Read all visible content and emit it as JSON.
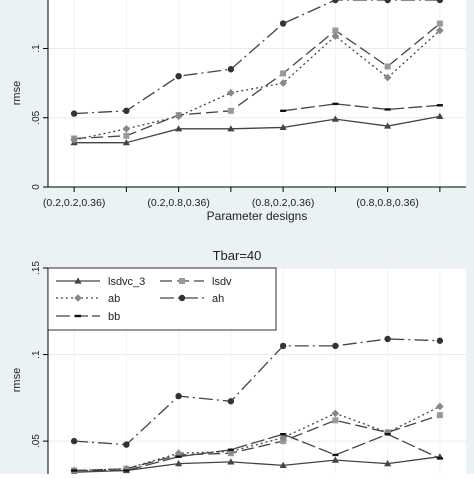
{
  "colors": {
    "plot_region": "#eaf2f3",
    "outer_region": "#ffffff",
    "grid": "#ffffff",
    "axis": "#000000",
    "series": "#444444",
    "lsdv_marker": "#999999",
    "ab_marker": "#888888"
  },
  "chart_data": [
    {
      "type": "line",
      "title": "",
      "xlabel": "Parameter designs",
      "ylabel": "rmse",
      "tick_labels_x": [
        "(0.2,0.2,0.36)",
        "(0.2,0.8,0.36)",
        "(0.8,0.2,0.36)",
        "(0.8,0.8,0.36)"
      ],
      "tick_positions_x": [
        1,
        3,
        5,
        7
      ],
      "tick_labels_y": [
        "0",
        ".05",
        ".1"
      ],
      "y_ticks": [
        0,
        0.05,
        0.1
      ],
      "xlim": [
        0.5,
        8.5
      ],
      "ylim": [
        0,
        0.135
      ],
      "x": [
        1,
        2,
        3,
        4,
        5,
        6,
        7,
        8
      ],
      "series": [
        {
          "name": "lsdvc_3",
          "marker": "triangle",
          "dash": "",
          "values": [
            0.032,
            0.032,
            0.042,
            0.042,
            0.043,
            0.049,
            0.044,
            0.051
          ]
        },
        {
          "name": "lsdv",
          "marker": "square",
          "dash": "12 5",
          "values": [
            0.035,
            0.037,
            0.052,
            0.055,
            0.082,
            0.113,
            0.087,
            0.118
          ]
        },
        {
          "name": "ab",
          "marker": "diamond",
          "dash": "2 3",
          "values": [
            0.034,
            0.042,
            0.051,
            0.068,
            0.075,
            0.109,
            0.079,
            0.113
          ]
        },
        {
          "name": "ah",
          "marker": "circle",
          "dash": "14 4 2 4",
          "values": [
            0.053,
            0.055,
            0.08,
            0.085,
            0.118,
            0.135,
            0.135,
            0.135
          ]
        },
        {
          "name": "bb",
          "marker": "dash",
          "dash": "14 4",
          "values": [
            null,
            null,
            null,
            null,
            0.055,
            0.06,
            0.056,
            0.059
          ]
        }
      ]
    },
    {
      "type": "line",
      "title": "Tbar=40",
      "xlabel": "",
      "ylabel": "rmse",
      "tick_labels_x": [],
      "tick_labels_y": [
        ".05",
        ".1",
        ".15"
      ],
      "y_ticks": [
        0.05,
        0.1,
        0.15
      ],
      "xlim": [
        0.5,
        8.5
      ],
      "ylim": [
        0.031,
        0.15
      ],
      "x": [
        1,
        2,
        3,
        4,
        5,
        6,
        7,
        8
      ],
      "series": [
        {
          "name": "lsdvc_3",
          "marker": "triangle",
          "dash": "",
          "values": [
            0.032,
            0.033,
            0.037,
            0.038,
            0.036,
            0.039,
            0.037,
            0.041
          ]
        },
        {
          "name": "lsdv",
          "marker": "square",
          "dash": "12 5",
          "values": [
            0.033,
            0.034,
            0.042,
            0.043,
            0.05,
            0.062,
            0.055,
            0.065
          ]
        },
        {
          "name": "ab",
          "marker": "diamond",
          "dash": "2 3",
          "values": [
            0.033,
            0.034,
            0.043,
            0.044,
            0.052,
            0.066,
            0.055,
            0.07
          ]
        },
        {
          "name": "ah",
          "marker": "circle",
          "dash": "14 4 2 4",
          "values": [
            0.05,
            0.048,
            0.076,
            0.073,
            0.105,
            0.105,
            0.109,
            0.108
          ]
        },
        {
          "name": "bb",
          "marker": "dash",
          "dash": "14 4",
          "values": [
            0.033,
            0.033,
            0.041,
            0.045,
            0.054,
            0.042,
            0.054,
            0.04
          ]
        }
      ],
      "legend": {
        "position": "top-left",
        "entries": [
          "lsdvc_3",
          "lsdv",
          "ab",
          "ah",
          "bb"
        ]
      }
    }
  ]
}
